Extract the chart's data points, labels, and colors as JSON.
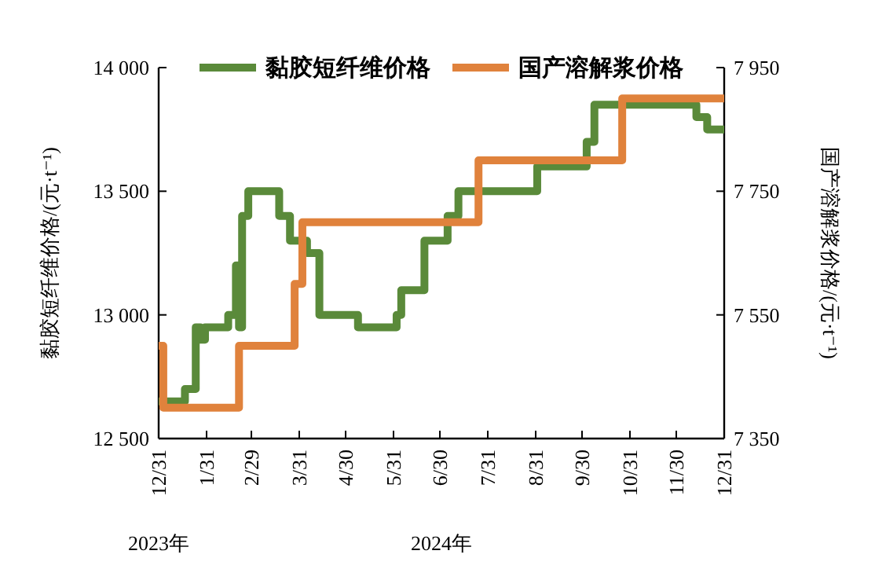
{
  "chart_data": {
    "type": "step",
    "ylabel": "黏胶短纤维价格/(元·t⁻¹)",
    "y2label": "国产溶解浆价格/(元·t⁻¹)",
    "annotations": [
      "2023年",
      "2024年"
    ],
    "xlim": [
      "2023-12-31",
      "2024-12-31"
    ],
    "xticks": [
      {
        "value": "2023-12-31",
        "label": "12/31"
      },
      {
        "value": "2024-01-31",
        "label": "1/31"
      },
      {
        "value": "2024-02-29",
        "label": "2/29"
      },
      {
        "value": "2024-03-31",
        "label": "3/31"
      },
      {
        "value": "2024-04-30",
        "label": "4/30"
      },
      {
        "value": "2024-05-31",
        "label": "5/31"
      },
      {
        "value": "2024-06-30",
        "label": "6/30"
      },
      {
        "value": "2024-07-31",
        "label": "7/31"
      },
      {
        "value": "2024-08-31",
        "label": "8/31"
      },
      {
        "value": "2024-09-30",
        "label": "9/30"
      },
      {
        "value": "2024-10-31",
        "label": "10/31"
      },
      {
        "value": "2024-11-30",
        "label": "11/30"
      },
      {
        "value": "2024-12-31",
        "label": "12/31"
      }
    ],
    "ylim": [
      12500,
      14000
    ],
    "yticks": [
      {
        "value": 12500,
        "label": "12 500"
      },
      {
        "value": 13000,
        "label": "13 000"
      },
      {
        "value": 13500,
        "label": "13 500"
      },
      {
        "value": 14000,
        "label": "14 000"
      }
    ],
    "y2lim": [
      7350,
      7950
    ],
    "y2ticks": [
      {
        "value": 7350,
        "label": "7 350"
      },
      {
        "value": 7550,
        "label": "7 550"
      },
      {
        "value": 7750,
        "label": "7 750"
      },
      {
        "value": 7950,
        "label": "7 950"
      }
    ],
    "legend": "top",
    "series": [
      {
        "name": "黏胶短纤维价格",
        "color": "#5a8a3a",
        "x": [
          "2023-12-31",
          "2024-01-17",
          "2024-01-24",
          "2024-01-27",
          "2024-01-30",
          "2024-02-14",
          "2024-02-19",
          "2024-02-21",
          "2024-02-23",
          "2024-02-27",
          "2024-03-18",
          "2024-03-25",
          "2024-04-05",
          "2024-04-13",
          "2024-05-08",
          "2024-06-02",
          "2024-06-05",
          "2024-06-20",
          "2024-07-05",
          "2024-07-12",
          "2024-09-01",
          "2024-10-03",
          "2024-10-08",
          "2024-12-13",
          "2024-12-20",
          "2024-12-31"
        ],
        "values": [
          12650,
          12700,
          12950,
          12900,
          12950,
          13000,
          13200,
          12950,
          13400,
          13500,
          13400,
          13300,
          13250,
          13000,
          12950,
          13000,
          13100,
          13300,
          13400,
          13500,
          13600,
          13700,
          13850,
          13800,
          13750,
          13750
        ]
      },
      {
        "name": "国产溶解浆价格",
        "color": "#e0823c",
        "axis": "y2",
        "x": [
          "2023-12-31",
          "2024-01-03",
          "2024-02-21",
          "2024-03-28",
          "2024-04-02",
          "2024-07-25",
          "2024-10-26",
          "2024-12-31"
        ],
        "values": [
          7500,
          7400,
          7500,
          7600,
          7700,
          7800,
          7900,
          7900
        ]
      }
    ]
  }
}
